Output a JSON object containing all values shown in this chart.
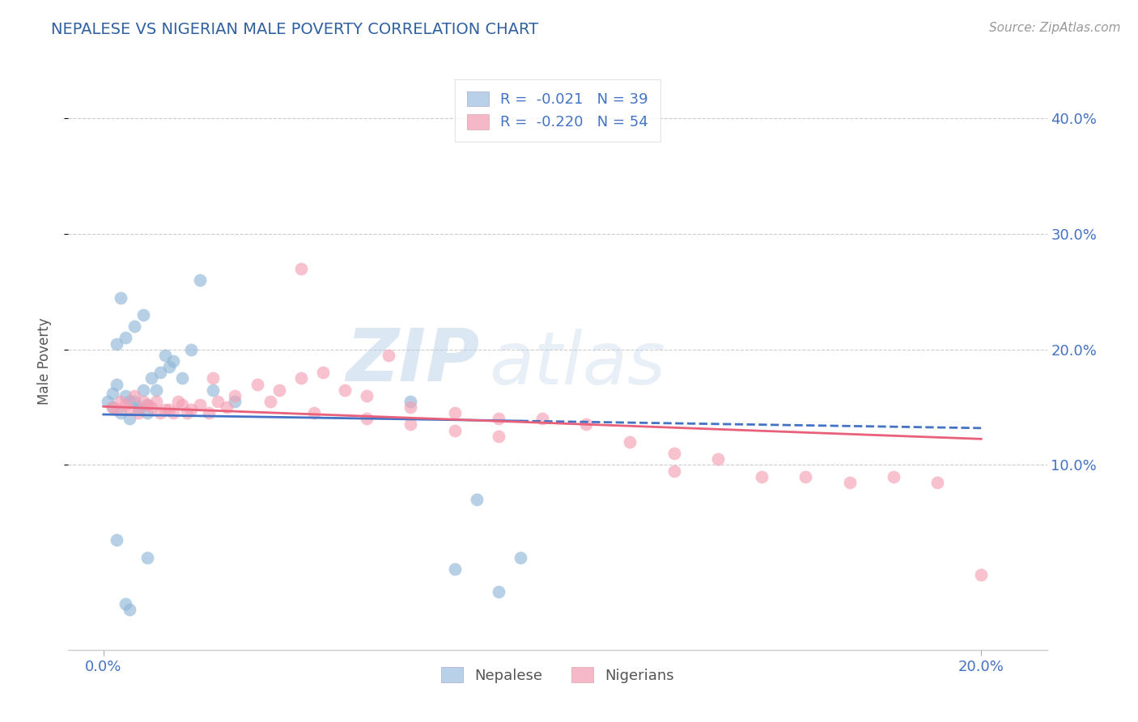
{
  "title": "NEPALESE VS NIGERIAN MALE POVERTY CORRELATION CHART",
  "source_text": "Source: ZipAtlas.com",
  "ylabel": "Male Poverty",
  "xlim": [
    -0.008,
    0.215
  ],
  "ylim": [
    -0.06,
    0.44
  ],
  "xticks": [
    0.0,
    0.2
  ],
  "xtick_labels": [
    "0.0%",
    "20.0%"
  ],
  "ytick_positions": [
    0.1,
    0.2,
    0.3,
    0.4
  ],
  "ytick_labels": [
    "10.0%",
    "20.0%",
    "30.0%",
    "40.0%"
  ],
  "nepalese_color": "#91b8d8",
  "nigerian_color": "#f4a0b5",
  "nepalese_line_color": "#4472c4",
  "nigerian_line_color": "#e8607a",
  "watermark_text": "ZIP",
  "watermark_text2": "atlas",
  "title_color": "#3060a0",
  "axis_color": "#4472c4",
  "grid_color": "#cccccc",
  "background_color": "#ffffff",
  "nepalese_x": [
    0.001,
    0.002,
    0.003,
    0.004,
    0.005,
    0.006,
    0.007,
    0.008,
    0.009,
    0.01,
    0.011,
    0.012,
    0.013,
    0.014,
    0.015,
    0.016,
    0.003,
    0.005,
    0.007,
    0.009,
    0.004,
    0.006,
    0.008,
    0.01,
    0.002,
    0.018,
    0.02,
    0.022,
    0.025,
    0.03,
    0.07,
    0.01,
    0.003,
    0.08,
    0.085,
    0.09,
    0.095,
    0.005,
    0.006
  ],
  "nepalese_y": [
    0.155,
    0.15,
    0.17,
    0.145,
    0.16,
    0.14,
    0.155,
    0.15,
    0.165,
    0.145,
    0.175,
    0.165,
    0.18,
    0.195,
    0.185,
    0.19,
    0.205,
    0.21,
    0.22,
    0.23,
    0.245,
    0.155,
    0.148,
    0.152,
    0.162,
    0.175,
    0.2,
    0.26,
    0.165,
    0.155,
    0.155,
    0.02,
    0.035,
    0.01,
    0.07,
    -0.01,
    0.02,
    -0.02,
    -0.025
  ],
  "nigerian_x": [
    0.002,
    0.004,
    0.006,
    0.008,
    0.01,
    0.012,
    0.014,
    0.016,
    0.018,
    0.02,
    0.022,
    0.024,
    0.026,
    0.028,
    0.03,
    0.035,
    0.04,
    0.045,
    0.05,
    0.055,
    0.06,
    0.065,
    0.07,
    0.08,
    0.09,
    0.1,
    0.11,
    0.12,
    0.13,
    0.14,
    0.003,
    0.005,
    0.007,
    0.009,
    0.011,
    0.013,
    0.015,
    0.017,
    0.019,
    0.025,
    0.038,
    0.048,
    0.06,
    0.07,
    0.08,
    0.09,
    0.13,
    0.15,
    0.16,
    0.17,
    0.18,
    0.19,
    0.2,
    0.045
  ],
  "nigerian_y": [
    0.15,
    0.155,
    0.148,
    0.145,
    0.152,
    0.155,
    0.148,
    0.145,
    0.152,
    0.148,
    0.152,
    0.145,
    0.155,
    0.15,
    0.16,
    0.17,
    0.165,
    0.175,
    0.18,
    0.165,
    0.16,
    0.195,
    0.15,
    0.145,
    0.14,
    0.14,
    0.135,
    0.12,
    0.11,
    0.105,
    0.148,
    0.152,
    0.16,
    0.155,
    0.15,
    0.145,
    0.148,
    0.155,
    0.145,
    0.175,
    0.155,
    0.145,
    0.14,
    0.135,
    0.13,
    0.125,
    0.095,
    0.09,
    0.09,
    0.085,
    0.09,
    0.085,
    0.005,
    0.27
  ]
}
